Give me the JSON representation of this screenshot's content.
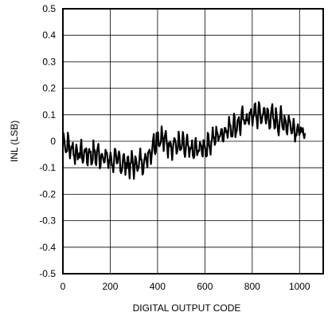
{
  "chart_data": {
    "type": "line",
    "title": "",
    "xlabel": "DIGITAL OUTPUT CODE",
    "ylabel": "INL (LSB)",
    "xlim": [
      0,
      1100
    ],
    "ylim": [
      -0.5,
      0.5
    ],
    "grid": true,
    "x_ticks": [
      0,
      200,
      400,
      600,
      800,
      1000
    ],
    "x_tick_labels": [
      "0",
      "200",
      "400",
      "600",
      "800",
      "1000"
    ],
    "y_ticks": [
      0.5,
      0.4,
      0.3,
      0.2,
      0.1,
      0,
      -0.1,
      -0.2,
      -0.3,
      -0.4,
      -0.5
    ],
    "y_tick_labels": [
      "0.5",
      "0.4",
      "0.3",
      "0.2",
      "0.1",
      "0",
      "-0.1",
      "-0.2",
      "-0.3",
      "-0.4",
      "-0.5"
    ],
    "line_color": "#000000",
    "series": [
      {
        "x": [
          0,
          50,
          100,
          150,
          200,
          250,
          300,
          350,
          400,
          450,
          500,
          550,
          600,
          650,
          700,
          750,
          800,
          850,
          900,
          950,
          1000,
          1023
        ],
        "y": [
          0.0,
          -0.04,
          -0.05,
          -0.05,
          -0.07,
          -0.08,
          -0.09,
          -0.07,
          0.02,
          -0.01,
          -0.02,
          -0.04,
          -0.02,
          0.02,
          0.05,
          0.07,
          0.1,
          0.1,
          0.08,
          0.07,
          0.04,
          0.02
        ],
        "noise_amplitude": 0.06
      }
    ]
  }
}
